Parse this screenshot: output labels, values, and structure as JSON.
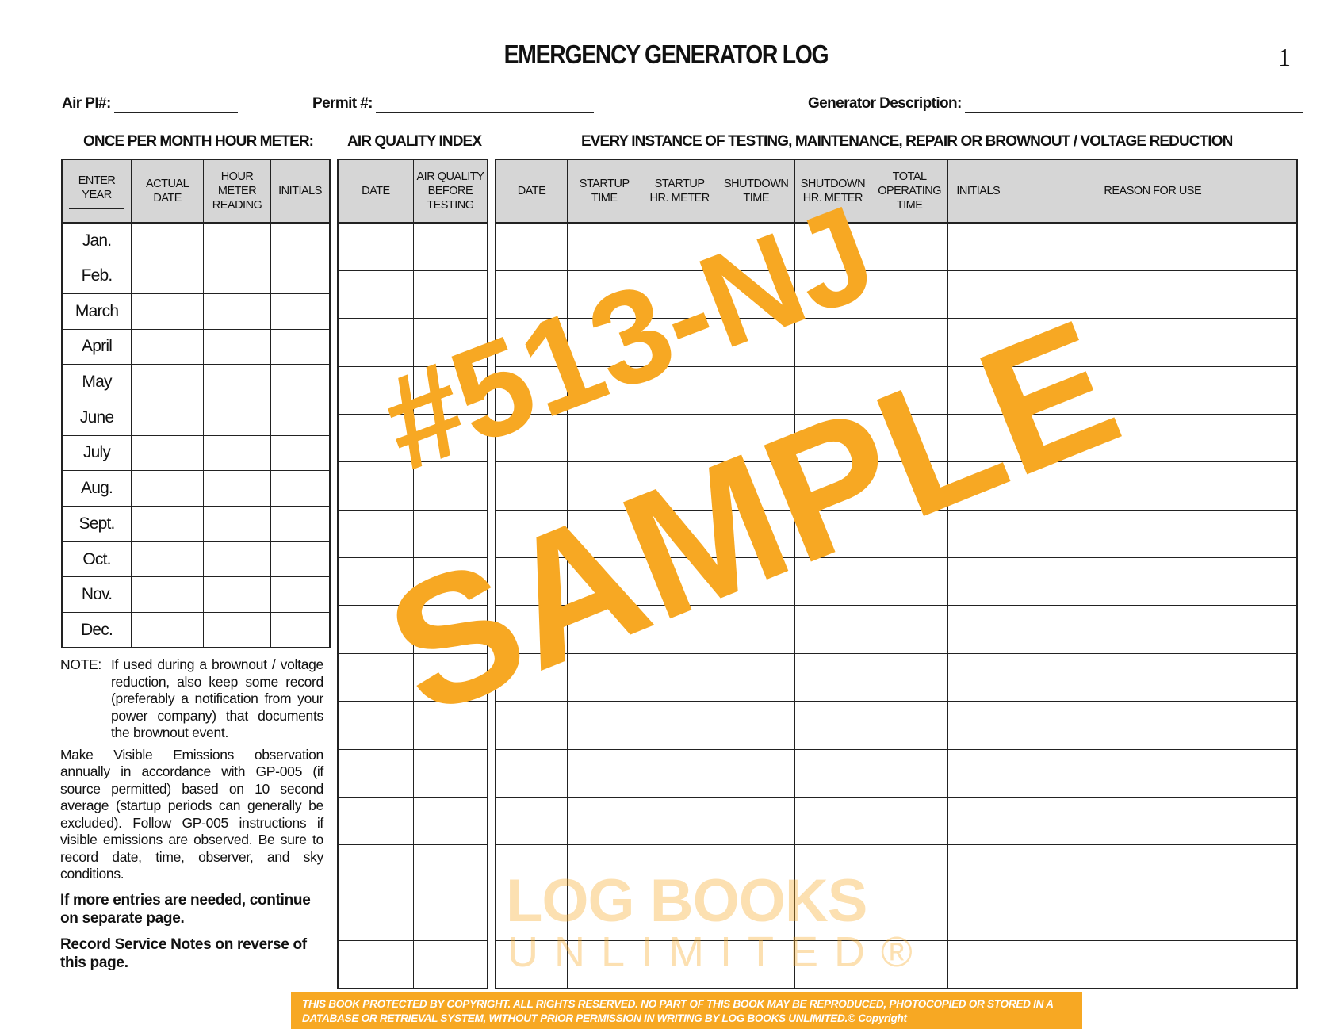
{
  "header": {
    "title": "EMERGENCY GENERATOR LOG",
    "page_number": "1",
    "air_pi_label": "Air PI#:",
    "permit_label": "Permit #:",
    "generator_description_label": "Generator Description:"
  },
  "sections": {
    "monthly": "ONCE PER MONTH HOUR METER:",
    "aqi": "AIR QUALITY INDEX",
    "instances": "EVERY INSTANCE OF TESTING, MAINTENANCE, REPAIR OR BROWNOUT / VOLTAGE REDUCTION"
  },
  "monthly_table": {
    "headers": [
      "ENTER\nYEAR",
      "ACTUAL\nDATE",
      "HOUR\nMETER\nREADING",
      "INITIALS"
    ],
    "months": [
      "Jan.",
      "Feb.",
      "March",
      "April",
      "May",
      "June",
      "July",
      "Aug.",
      "Sept.",
      "Oct.",
      "Nov.",
      "Dec."
    ]
  },
  "aqi_table": {
    "headers": [
      "DATE",
      "AIR QUALITY\nBEFORE\nTESTING"
    ]
  },
  "instances_table": {
    "headers": [
      "DATE",
      "STARTUP\nTIME",
      "STARTUP\nHR. METER",
      "SHUTDOWN\nTIME",
      "SHUTDOWN\nHR. METER",
      "TOTAL\nOPERATING\nTIME",
      "INITIALS",
      "REASON FOR USE"
    ]
  },
  "notes": {
    "note_label": "NOTE:",
    "note_text": "If used during a brownout / voltage reduction, also keep some record (preferably a notification from your power company) that documents the brownout event.",
    "visible_emissions": "Make Visible Emissions observation annually in accordance with GP-005 (if source permitted) based on 10 second average (startup periods can generally be excluded). Follow GP-005 instructions if visible emissions are observed. Be sure to record date, time, observer, and sky conditions.",
    "more_entries": "If more entries are needed, continue on separate page.",
    "service_notes": "Record Service Notes on reverse of this page."
  },
  "watermark": {
    "line1": "#513-NJ",
    "line2": "SAMPLE",
    "logo_line1": "LOG BOOKS",
    "logo_line2": "UNLIMITED®",
    "color": "#f7a823"
  },
  "footer": {
    "text": "THIS BOOK PROTECTED BY COPYRIGHT. ALL RIGHTS RESERVED. NO PART OF THIS BOOK MAY BE REPRODUCED, PHOTOCOPIED OR STORED IN A DATABASE OR RETRIEVAL SYSTEM, WITHOUT PRIOR PERMISSION IN WRITING BY LOG BOOKS UNLIMITED.© Copyright",
    "background": "#f7a823"
  }
}
